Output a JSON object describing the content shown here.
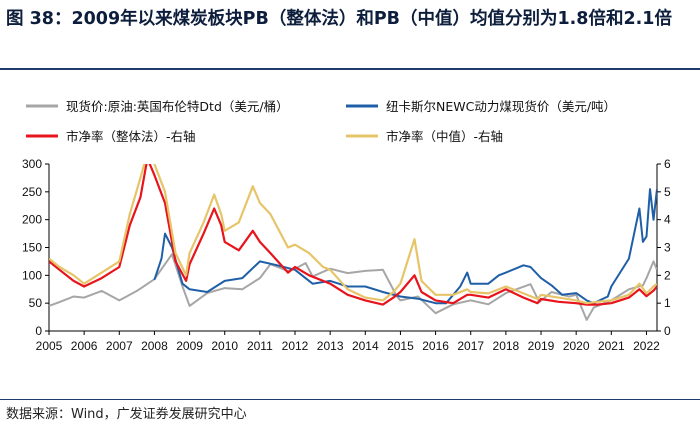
{
  "title": "图 38：2009年以来煤炭板块PB（整体法）和PB（中值）均值分别为1.8倍和2.1倍",
  "source": "数据来源：Wind，广发证券发展研究中心",
  "chart_data": {
    "type": "line",
    "xlabel": "",
    "ylabel": "",
    "x_ticks": [
      "2005",
      "2006",
      "2007",
      "2008",
      "2009",
      "2010",
      "2011",
      "2012",
      "2013",
      "2014",
      "2015",
      "2016",
      "2017",
      "2018",
      "2019",
      "2020",
      "2021",
      "2022"
    ],
    "y_left": {
      "range": [
        0,
        300
      ],
      "ticks": [
        "0",
        "50",
        "100",
        "150",
        "200",
        "250",
        "300"
      ]
    },
    "y_right": {
      "range": [
        0,
        6
      ],
      "ticks": [
        "0",
        "1",
        "2",
        "3",
        "4",
        "5",
        "6"
      ]
    },
    "grid": false,
    "legend_position": "top",
    "series": [
      {
        "name": "现货价:原油:英国布伦特Dtd（美元/桶）",
        "axis": "left",
        "color": "#a6a6a6",
        "points": [
          [
            2005.0,
            45
          ],
          [
            2005.3,
            52
          ],
          [
            2005.7,
            62
          ],
          [
            2006.0,
            60
          ],
          [
            2006.5,
            72
          ],
          [
            2007.0,
            55
          ],
          [
            2007.5,
            72
          ],
          [
            2008.0,
            93
          ],
          [
            2008.5,
            138
          ],
          [
            2008.8,
            80
          ],
          [
            2009.0,
            45
          ],
          [
            2009.5,
            68
          ],
          [
            2010.0,
            77
          ],
          [
            2010.5,
            75
          ],
          [
            2011.0,
            95
          ],
          [
            2011.3,
            120
          ],
          [
            2011.8,
            108
          ],
          [
            2012.0,
            112
          ],
          [
            2012.3,
            122
          ],
          [
            2012.5,
            98
          ],
          [
            2013.0,
            112
          ],
          [
            2013.5,
            104
          ],
          [
            2014.0,
            108
          ],
          [
            2014.5,
            110
          ],
          [
            2014.9,
            62
          ],
          [
            2015.0,
            55
          ],
          [
            2015.5,
            62
          ],
          [
            2016.0,
            32
          ],
          [
            2016.5,
            48
          ],
          [
            2017.0,
            55
          ],
          [
            2017.5,
            48
          ],
          [
            2018.0,
            68
          ],
          [
            2018.7,
            84
          ],
          [
            2018.95,
            52
          ],
          [
            2019.3,
            70
          ],
          [
            2019.8,
            62
          ],
          [
            2020.0,
            65
          ],
          [
            2020.3,
            20
          ],
          [
            2020.5,
            42
          ],
          [
            2021.0,
            55
          ],
          [
            2021.5,
            75
          ],
          [
            2021.9,
            82
          ],
          [
            2022.0,
            95
          ],
          [
            2022.2,
            125
          ],
          [
            2022.3,
            110
          ]
        ]
      },
      {
        "name": "纽卡斯尔NEWC动力煤现货价（美元/吨）",
        "axis": "left",
        "color": "#1f5fa7",
        "points": [
          [
            2008.0,
            92
          ],
          [
            2008.2,
            130
          ],
          [
            2008.3,
            175
          ],
          [
            2008.5,
            150
          ],
          [
            2008.8,
            85
          ],
          [
            2009.0,
            75
          ],
          [
            2009.5,
            70
          ],
          [
            2010.0,
            90
          ],
          [
            2010.5,
            95
          ],
          [
            2011.0,
            125
          ],
          [
            2011.5,
            118
          ],
          [
            2012.0,
            110
          ],
          [
            2012.5,
            85
          ],
          [
            2013.0,
            90
          ],
          [
            2013.5,
            80
          ],
          [
            2014.0,
            80
          ],
          [
            2014.5,
            70
          ],
          [
            2015.0,
            62
          ],
          [
            2015.5,
            58
          ],
          [
            2016.0,
            50
          ],
          [
            2016.3,
            50
          ],
          [
            2016.7,
            80
          ],
          [
            2016.9,
            105
          ],
          [
            2017.0,
            85
          ],
          [
            2017.5,
            85
          ],
          [
            2017.8,
            100
          ],
          [
            2018.0,
            105
          ],
          [
            2018.5,
            118
          ],
          [
            2018.7,
            115
          ],
          [
            2019.0,
            95
          ],
          [
            2019.3,
            82
          ],
          [
            2019.6,
            65
          ],
          [
            2020.0,
            68
          ],
          [
            2020.3,
            55
          ],
          [
            2020.5,
            50
          ],
          [
            2020.9,
            62
          ],
          [
            2021.0,
            80
          ],
          [
            2021.5,
            130
          ],
          [
            2021.8,
            220
          ],
          [
            2021.9,
            160
          ],
          [
            2022.0,
            170
          ],
          [
            2022.1,
            255
          ],
          [
            2022.2,
            200
          ],
          [
            2022.3,
            255
          ]
        ]
      },
      {
        "name": "市净率（整体法）-右轴",
        "axis": "right",
        "color": "#e8141c",
        "points": [
          [
            2005.0,
            2.5
          ],
          [
            2005.3,
            2.2
          ],
          [
            2005.7,
            1.8
          ],
          [
            2006.0,
            1.6
          ],
          [
            2006.5,
            1.9
          ],
          [
            2007.0,
            2.3
          ],
          [
            2007.3,
            3.8
          ],
          [
            2007.6,
            4.8
          ],
          [
            2007.8,
            6.2
          ],
          [
            2008.0,
            5.6
          ],
          [
            2008.3,
            4.6
          ],
          [
            2008.6,
            2.5
          ],
          [
            2008.9,
            1.8
          ],
          [
            2009.0,
            2.4
          ],
          [
            2009.4,
            3.5
          ],
          [
            2009.7,
            4.4
          ],
          [
            2009.9,
            3.8
          ],
          [
            2010.0,
            3.2
          ],
          [
            2010.4,
            2.9
          ],
          [
            2010.8,
            3.6
          ],
          [
            2011.0,
            3.2
          ],
          [
            2011.3,
            2.8
          ],
          [
            2011.8,
            2.1
          ],
          [
            2012.0,
            2.3
          ],
          [
            2012.4,
            2.0
          ],
          [
            2012.8,
            1.8
          ],
          [
            2013.0,
            1.7
          ],
          [
            2013.5,
            1.3
          ],
          [
            2014.0,
            1.1
          ],
          [
            2014.5,
            0.95
          ],
          [
            2014.8,
            1.2
          ],
          [
            2015.0,
            1.4
          ],
          [
            2015.4,
            2.0
          ],
          [
            2015.6,
            1.4
          ],
          [
            2016.0,
            1.1
          ],
          [
            2016.5,
            1.0
          ],
          [
            2016.9,
            1.3
          ],
          [
            2017.0,
            1.3
          ],
          [
            2017.5,
            1.2
          ],
          [
            2018.0,
            1.5
          ],
          [
            2018.5,
            1.2
          ],
          [
            2018.9,
            1.0
          ],
          [
            2019.0,
            1.15
          ],
          [
            2019.5,
            1.05
          ],
          [
            2020.0,
            1.0
          ],
          [
            2020.3,
            0.95
          ],
          [
            2020.6,
            0.95
          ],
          [
            2021.0,
            1.0
          ],
          [
            2021.5,
            1.2
          ],
          [
            2021.8,
            1.5
          ],
          [
            2022.0,
            1.25
          ],
          [
            2022.2,
            1.45
          ],
          [
            2022.3,
            1.6
          ]
        ]
      },
      {
        "name": "市净率（中值）-右轴",
        "axis": "right",
        "color": "#e6c468",
        "points": [
          [
            2005.0,
            2.6
          ],
          [
            2005.3,
            2.3
          ],
          [
            2005.7,
            2.0
          ],
          [
            2006.0,
            1.7
          ],
          [
            2006.5,
            2.1
          ],
          [
            2007.0,
            2.5
          ],
          [
            2007.3,
            4.2
          ],
          [
            2007.6,
            5.5
          ],
          [
            2007.8,
            6.4
          ],
          [
            2008.0,
            6.0
          ],
          [
            2008.3,
            5.0
          ],
          [
            2008.6,
            2.8
          ],
          [
            2008.9,
            2.0
          ],
          [
            2009.0,
            2.8
          ],
          [
            2009.4,
            3.9
          ],
          [
            2009.7,
            4.9
          ],
          [
            2009.9,
            4.2
          ],
          [
            2010.0,
            3.6
          ],
          [
            2010.4,
            3.9
          ],
          [
            2010.8,
            5.2
          ],
          [
            2011.0,
            4.6
          ],
          [
            2011.3,
            4.2
          ],
          [
            2011.8,
            3.0
          ],
          [
            2012.0,
            3.1
          ],
          [
            2012.4,
            2.8
          ],
          [
            2012.8,
            2.3
          ],
          [
            2013.0,
            2.2
          ],
          [
            2013.5,
            1.5
          ],
          [
            2014.0,
            1.2
          ],
          [
            2014.5,
            1.1
          ],
          [
            2014.8,
            1.4
          ],
          [
            2015.0,
            1.7
          ],
          [
            2015.4,
            3.3
          ],
          [
            2015.6,
            1.8
          ],
          [
            2016.0,
            1.3
          ],
          [
            2016.5,
            1.3
          ],
          [
            2016.9,
            1.5
          ],
          [
            2017.0,
            1.4
          ],
          [
            2017.5,
            1.35
          ],
          [
            2018.0,
            1.6
          ],
          [
            2018.5,
            1.35
          ],
          [
            2018.9,
            1.15
          ],
          [
            2019.0,
            1.3
          ],
          [
            2019.5,
            1.2
          ],
          [
            2020.0,
            1.1
          ],
          [
            2020.3,
            1.0
          ],
          [
            2020.6,
            1.05
          ],
          [
            2021.0,
            1.1
          ],
          [
            2021.5,
            1.3
          ],
          [
            2021.8,
            1.7
          ],
          [
            2022.0,
            1.35
          ],
          [
            2022.2,
            1.6
          ],
          [
            2022.3,
            1.7
          ]
        ]
      }
    ]
  }
}
